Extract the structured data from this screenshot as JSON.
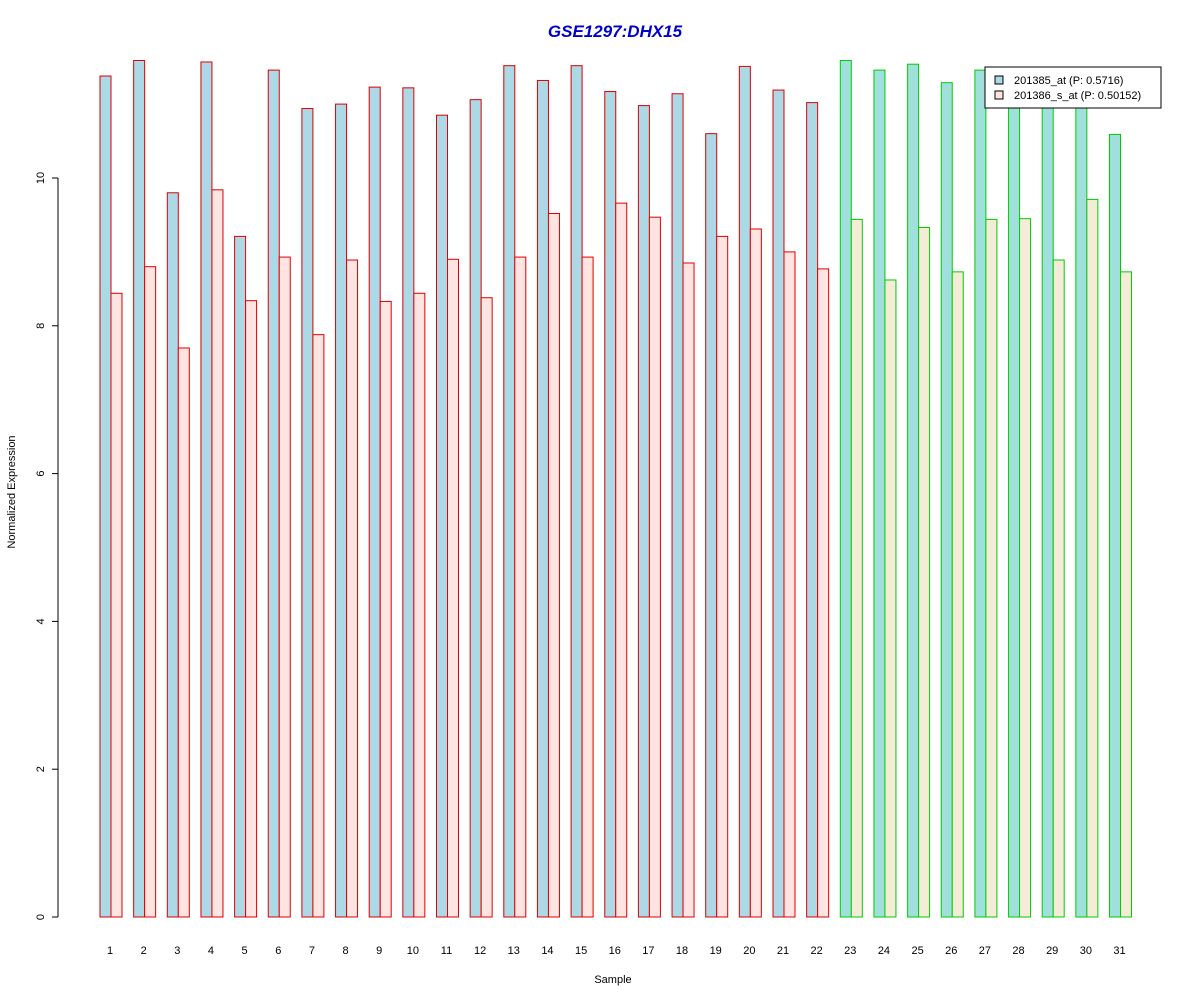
{
  "chart_data": {
    "type": "bar",
    "title": "GSE1297:DHX15",
    "xlabel": "Sample",
    "ylabel": "Normalized Expression",
    "ylim": [
      0,
      11.6
    ],
    "yticks": [
      0,
      2,
      4,
      6,
      8,
      10
    ],
    "categories": [
      "1",
      "2",
      "3",
      "4",
      "5",
      "6",
      "7",
      "8",
      "9",
      "10",
      "11",
      "12",
      "13",
      "14",
      "15",
      "16",
      "17",
      "18",
      "19",
      "20",
      "21",
      "22",
      "23",
      "24",
      "25",
      "26",
      "27",
      "28",
      "29",
      "30",
      "31"
    ],
    "series": [
      {
        "name": "201385_at (P: 0.5716)",
        "values": [
          11.38,
          11.59,
          9.8,
          11.57,
          9.21,
          11.46,
          10.94,
          11.0,
          11.23,
          11.22,
          10.85,
          11.06,
          11.52,
          11.32,
          11.52,
          11.17,
          10.98,
          11.14,
          10.6,
          11.51,
          11.19,
          11.02,
          11.59,
          11.46,
          11.54,
          11.29,
          11.46,
          11.05,
          11.05,
          11.0,
          10.59
        ]
      },
      {
        "name": "201386_s_at (P: 0.50152)",
        "values": [
          8.44,
          8.8,
          7.7,
          9.84,
          8.34,
          8.93,
          7.88,
          8.89,
          8.33,
          8.44,
          8.9,
          8.38,
          8.93,
          9.52,
          8.93,
          9.66,
          9.47,
          8.85,
          9.21,
          9.31,
          9.0,
          8.77,
          9.44,
          8.62,
          9.33,
          8.73,
          9.44,
          9.45,
          8.89,
          9.71,
          8.73
        ]
      }
    ],
    "groups": [
      {
        "from": 1,
        "to": 22,
        "border_color": "#dd0000",
        "fills": [
          "#add8e6",
          "#ffe4e1"
        ]
      },
      {
        "from": 23,
        "to": 31,
        "border_color": "#00cc00",
        "fills": [
          "#a0e0dc",
          "#f5ecd8"
        ]
      }
    ],
    "title_color": "#0000cc",
    "legend_position": "top-right",
    "legend_fills": [
      "#add8e6",
      "#ffe4e1"
    ],
    "grid": false
  }
}
